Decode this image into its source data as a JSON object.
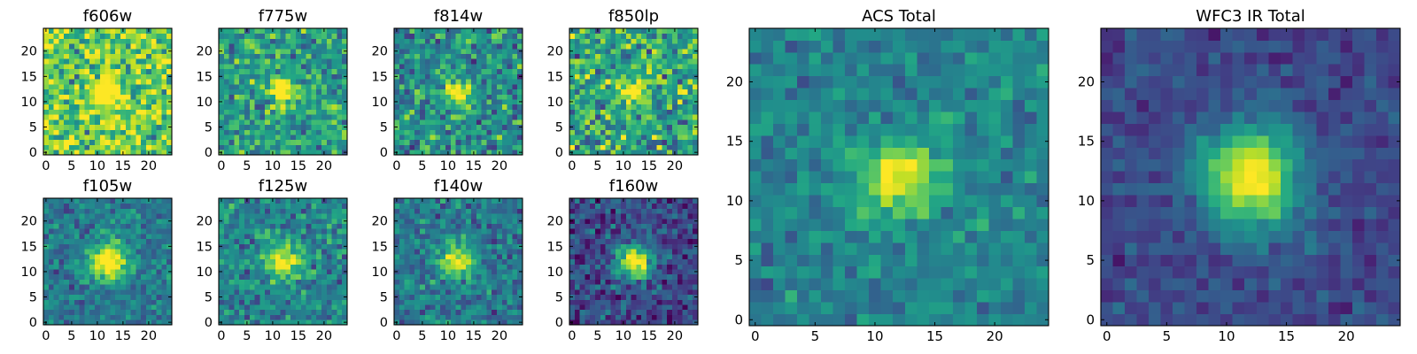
{
  "chart_data": {
    "type": "heatmap",
    "colormap": "viridis",
    "grid_size": [
      25,
      25
    ],
    "value_range": [
      0,
      1
    ],
    "panels": [
      {
        "id": "f606w",
        "title": "f606w",
        "source_center": [
          12,
          12
        ],
        "source_sigma": 2.0,
        "peak": 0.55,
        "background": 0.78,
        "noise": 0.3,
        "xticks": [
          0,
          5,
          10,
          15,
          20
        ],
        "yticks": [
          0,
          5,
          10,
          15,
          20
        ],
        "xlim": [
          -0.5,
          24.5
        ],
        "ylim": [
          -0.5,
          24.5
        ]
      },
      {
        "id": "f775w",
        "title": "f775w",
        "source_center": [
          12,
          12
        ],
        "source_sigma": 1.8,
        "peak": 0.6,
        "background": 0.56,
        "noise": 0.24,
        "xticks": [
          0,
          5,
          10,
          15,
          20
        ],
        "yticks": [
          0,
          5,
          10,
          15,
          20
        ],
        "xlim": [
          -0.5,
          24.5
        ],
        "ylim": [
          -0.5,
          24.5
        ]
      },
      {
        "id": "f814w",
        "title": "f814w",
        "source_center": [
          12,
          12
        ],
        "source_sigma": 1.8,
        "peak": 0.65,
        "background": 0.5,
        "noise": 0.25,
        "xticks": [
          0,
          5,
          10,
          15,
          20
        ],
        "yticks": [
          0,
          5,
          10,
          15,
          20
        ],
        "xlim": [
          -0.5,
          24.5
        ],
        "ylim": [
          -0.5,
          24.5
        ]
      },
      {
        "id": "f850lp",
        "title": "f850lp",
        "source_center": [
          12,
          12
        ],
        "source_sigma": 1.8,
        "peak": 0.5,
        "background": 0.6,
        "noise": 0.3,
        "xticks": [
          0,
          5,
          10,
          15,
          20
        ],
        "yticks": [
          0,
          5,
          10,
          15,
          20
        ],
        "xlim": [
          -0.5,
          24.5
        ],
        "ylim": [
          -0.5,
          24.5
        ]
      },
      {
        "id": "f105w",
        "title": "f105w",
        "source_center": [
          12,
          12
        ],
        "source_sigma": 2.6,
        "peak": 0.7,
        "background": 0.4,
        "noise": 0.16,
        "xticks": [
          0,
          5,
          10,
          15,
          20
        ],
        "yticks": [
          0,
          5,
          10,
          15,
          20
        ],
        "xlim": [
          -0.5,
          24.5
        ],
        "ylim": [
          -0.5,
          24.5
        ]
      },
      {
        "id": "f125w",
        "title": "f125w",
        "source_center": [
          12,
          12
        ],
        "source_sigma": 2.4,
        "peak": 0.6,
        "background": 0.45,
        "noise": 0.2,
        "xticks": [
          0,
          5,
          10,
          15,
          20
        ],
        "yticks": [
          0,
          5,
          10,
          15,
          20
        ],
        "xlim": [
          -0.5,
          24.5
        ],
        "ylim": [
          -0.5,
          24.5
        ]
      },
      {
        "id": "f140w",
        "title": "f140w",
        "source_center": [
          12,
          12
        ],
        "source_sigma": 2.3,
        "peak": 0.6,
        "background": 0.4,
        "noise": 0.18,
        "xticks": [
          0,
          5,
          10,
          15,
          20
        ],
        "yticks": [
          0,
          5,
          10,
          15,
          20
        ],
        "xlim": [
          -0.5,
          24.5
        ],
        "ylim": [
          -0.5,
          24.5
        ]
      },
      {
        "id": "f160w",
        "title": "f160w",
        "source_center": [
          12,
          12
        ],
        "source_sigma": 2.5,
        "peak": 0.8,
        "background": 0.22,
        "noise": 0.18,
        "xticks": [
          0,
          5,
          10,
          15,
          20
        ],
        "yticks": [
          0,
          5,
          10,
          15,
          20
        ],
        "xlim": [
          -0.5,
          24.5
        ],
        "ylim": [
          -0.5,
          24.5
        ]
      },
      {
        "id": "acs_total",
        "title": "ACS Total",
        "source_center": [
          12,
          12
        ],
        "source_sigma": 2.2,
        "peak": 0.55,
        "background": 0.45,
        "noise": 0.14,
        "xticks": [
          0,
          5,
          10,
          15,
          20
        ],
        "yticks": [
          0,
          5,
          10,
          15,
          20
        ],
        "xlim": [
          -0.5,
          24.5
        ],
        "ylim": [
          -0.5,
          24.5
        ]
      },
      {
        "id": "wfc3_ir_total",
        "title": "WFC3 IR Total",
        "source_center": [
          12,
          12
        ],
        "source_sigma": 3.0,
        "peak": 0.8,
        "background": 0.22,
        "noise": 0.1,
        "xticks": [
          0,
          5,
          10,
          15,
          20
        ],
        "yticks": [
          0,
          5,
          10,
          15,
          20
        ],
        "xlim": [
          -0.5,
          24.5
        ],
        "ylim": [
          -0.5,
          24.5
        ]
      }
    ]
  }
}
